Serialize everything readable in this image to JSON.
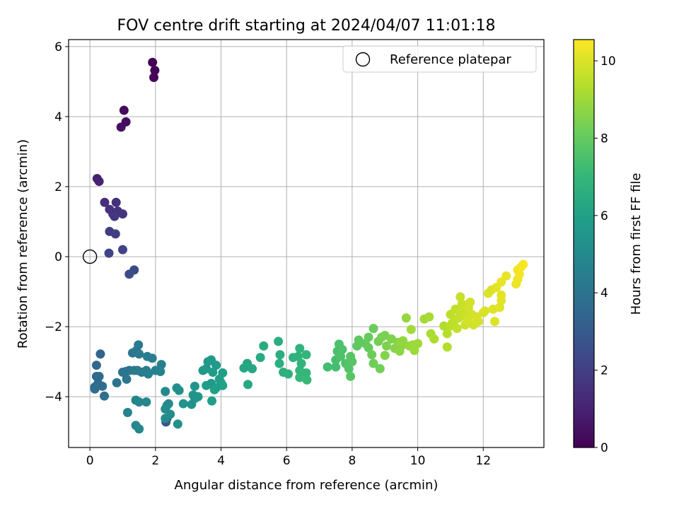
{
  "chart_data": {
    "type": "scatter",
    "title": "FOV centre drift starting at 2024/04/07 11:01:18",
    "xlabel": "Angular distance from reference (arcmin)",
    "ylabel": "Rotation from reference (arcmin)",
    "xlim": [
      -0.65,
      13.85
    ],
    "ylim": [
      -5.45,
      6.2
    ],
    "xticks": [
      "0",
      "2",
      "4",
      "6",
      "8",
      "10",
      "12"
    ],
    "xtick_values": [
      0,
      2,
      4,
      6,
      8,
      10,
      12
    ],
    "yticks": [
      "−4",
      "−2",
      "0",
      "2",
      "4",
      "6"
    ],
    "ytick_values": [
      -4,
      -2,
      0,
      2,
      4,
      6
    ],
    "grid": true,
    "colormap": "viridis",
    "colorbar": {
      "label": "Hours from first FF file",
      "range": [
        0,
        10.55
      ],
      "ticks": [
        "0",
        "2",
        "4",
        "6",
        "8",
        "10"
      ],
      "tick_values": [
        0,
        2,
        4,
        6,
        8,
        10
      ]
    },
    "legend": {
      "position": "top-right",
      "label": "Reference platepar"
    },
    "reference_point": {
      "x": 0,
      "y": 0
    },
    "points_header": [
      "x_arcmin",
      "rotation_arcmin",
      "hours"
    ],
    "points": [
      [
        1.91,
        5.55,
        0.05
      ],
      [
        1.98,
        5.32,
        0.1
      ],
      [
        1.95,
        5.12,
        0.15
      ],
      [
        1.04,
        4.18,
        0.3
      ],
      [
        1.1,
        3.85,
        0.35
      ],
      [
        0.95,
        3.7,
        0.4
      ],
      [
        0.22,
        2.23,
        0.9
      ],
      [
        0.28,
        2.15,
        1.0
      ],
      [
        0.45,
        1.55,
        1.4
      ],
      [
        0.8,
        1.55,
        1.45
      ],
      [
        0.6,
        1.35,
        1.5
      ],
      [
        0.85,
        1.3,
        1.55
      ],
      [
        0.7,
        1.22,
        1.6
      ],
      [
        1.0,
        1.22,
        1.65
      ],
      [
        0.75,
        1.15,
        1.7
      ],
      [
        0.6,
        0.72,
        1.9
      ],
      [
        0.78,
        0.65,
        2.0
      ],
      [
        1.0,
        0.2,
        2.1
      ],
      [
        0.58,
        0.1,
        2.15
      ],
      [
        1.35,
        -0.38,
        2.4
      ],
      [
        1.2,
        -0.5,
        2.5
      ],
      [
        2.32,
        -4.72,
        2.8
      ],
      [
        2.35,
        -4.62,
        3.0
      ],
      [
        0.32,
        -2.78,
        3.4
      ],
      [
        0.2,
        -3.1,
        3.5
      ],
      [
        0.2,
        -3.42,
        3.55
      ],
      [
        0.28,
        -3.42,
        3.6
      ],
      [
        0.25,
        -3.62,
        3.65
      ],
      [
        0.15,
        -3.72,
        3.7
      ],
      [
        0.38,
        -3.7,
        3.75
      ],
      [
        0.15,
        -3.78,
        3.8
      ],
      [
        0.44,
        -3.98,
        3.85
      ],
      [
        0.82,
        -3.6,
        4.0
      ],
      [
        1.0,
        -3.3,
        4.05
      ],
      [
        1.1,
        -3.28,
        4.1
      ],
      [
        1.2,
        -3.25,
        4.1
      ],
      [
        1.12,
        -3.5,
        4.15
      ],
      [
        1.3,
        -2.75,
        4.2
      ],
      [
        1.42,
        -2.68,
        4.25
      ],
      [
        1.48,
        -2.52,
        4.3
      ],
      [
        1.5,
        -2.78,
        4.3
      ],
      [
        1.35,
        -3.25,
        4.35
      ],
      [
        1.45,
        -3.25,
        4.4
      ],
      [
        1.58,
        -3.3,
        4.45
      ],
      [
        1.75,
        -2.85,
        4.5
      ],
      [
        1.9,
        -2.9,
        4.5
      ],
      [
        1.72,
        -3.25,
        4.55
      ],
      [
        1.78,
        -3.35,
        4.6
      ],
      [
        2.0,
        -3.25,
        4.6
      ],
      [
        2.18,
        -3.08,
        4.65
      ],
      [
        2.15,
        -3.28,
        4.7
      ],
      [
        1.15,
        -4.45,
        4.75
      ],
      [
        1.4,
        -4.1,
        4.8
      ],
      [
        1.5,
        -4.15,
        4.85
      ],
      [
        1.72,
        -4.15,
        4.9
      ],
      [
        1.4,
        -4.82,
        4.9
      ],
      [
        1.5,
        -4.92,
        4.95
      ],
      [
        2.3,
        -3.85,
        5.0
      ],
      [
        2.35,
        -4.25,
        5.05
      ],
      [
        2.4,
        -4.2,
        5.05
      ],
      [
        2.3,
        -4.35,
        5.1
      ],
      [
        2.45,
        -4.5,
        5.15
      ],
      [
        2.3,
        -4.62,
        5.15
      ],
      [
        2.65,
        -3.75,
        5.2
      ],
      [
        2.72,
        -3.82,
        5.25
      ],
      [
        2.68,
        -4.78,
        5.3
      ],
      [
        2.85,
        -4.2,
        5.35
      ],
      [
        3.1,
        -4.22,
        5.4
      ],
      [
        3.15,
        -3.95,
        5.45
      ],
      [
        3.2,
        -4.05,
        5.5
      ],
      [
        3.2,
        -3.7,
        5.5
      ],
      [
        3.3,
        -4.0,
        5.55
      ],
      [
        3.45,
        -3.25,
        5.6
      ],
      [
        3.6,
        -3.0,
        5.65
      ],
      [
        3.55,
        -3.2,
        5.65
      ],
      [
        3.7,
        -2.95,
        5.7
      ],
      [
        3.85,
        -3.1,
        5.7
      ],
      [
        3.75,
        -3.3,
        5.75
      ],
      [
        3.7,
        -3.62,
        5.75
      ],
      [
        3.55,
        -3.68,
        5.8
      ],
      [
        3.95,
        -3.5,
        5.8
      ],
      [
        3.85,
        -3.75,
        5.85
      ],
      [
        4.0,
        -3.6,
        5.85
      ],
      [
        4.05,
        -3.32,
        5.9
      ],
      [
        3.72,
        -4.12,
        5.9
      ],
      [
        3.8,
        -3.8,
        5.95
      ],
      [
        4.05,
        -3.68,
        6.0
      ],
      [
        4.8,
        -3.05,
        6.2
      ],
      [
        4.7,
        -3.18,
        6.25
      ],
      [
        4.95,
        -3.2,
        6.3
      ],
      [
        4.82,
        -3.65,
        6.35
      ],
      [
        5.2,
        -2.88,
        6.4
      ],
      [
        5.3,
        -2.55,
        6.45
      ],
      [
        5.75,
        -2.42,
        6.5
      ],
      [
        5.8,
        -2.8,
        6.55
      ],
      [
        5.78,
        -3.05,
        6.6
      ],
      [
        5.9,
        -3.3,
        6.65
      ],
      [
        6.05,
        -3.35,
        6.7
      ],
      [
        6.2,
        -2.88,
        6.75
      ],
      [
        6.35,
        -2.85,
        6.8
      ],
      [
        6.4,
        -2.62,
        6.85
      ],
      [
        6.45,
        -3.05,
        6.9
      ],
      [
        6.4,
        -3.25,
        6.95
      ],
      [
        6.6,
        -2.8,
        7.0
      ],
      [
        6.6,
        -3.32,
        7.0
      ],
      [
        6.4,
        -3.45,
        7.05
      ],
      [
        6.62,
        -3.52,
        7.1
      ],
      [
        7.25,
        -3.15,
        7.3
      ],
      [
        7.5,
        -3.15,
        7.35
      ],
      [
        7.5,
        -2.95,
        7.4
      ],
      [
        7.55,
        -2.7,
        7.45
      ],
      [
        7.6,
        -2.5,
        7.5
      ],
      [
        7.7,
        -2.65,
        7.55
      ],
      [
        7.65,
        -2.85,
        7.55
      ],
      [
        7.8,
        -3.05,
        7.6
      ],
      [
        7.9,
        -3.2,
        7.65
      ],
      [
        7.95,
        -2.85,
        7.7
      ],
      [
        8.0,
        -3.0,
        7.75
      ],
      [
        7.95,
        -3.42,
        7.8
      ],
      [
        8.15,
        -2.55,
        7.85
      ],
      [
        8.2,
        -2.38,
        7.9
      ],
      [
        8.4,
        -2.48,
        7.95
      ],
      [
        8.5,
        -2.6,
        8.0
      ],
      [
        8.5,
        -2.3,
        8.05
      ],
      [
        8.65,
        -2.05,
        8.1
      ],
      [
        8.6,
        -2.8,
        8.15
      ],
      [
        8.65,
        -3.05,
        8.2
      ],
      [
        8.85,
        -3.2,
        8.25
      ],
      [
        8.8,
        -2.42,
        8.3
      ],
      [
        8.9,
        -2.3,
        8.35
      ],
      [
        9.0,
        -2.25,
        8.4
      ],
      [
        9.05,
        -2.55,
        8.45
      ],
      [
        9.2,
        -2.35,
        8.5
      ],
      [
        9.0,
        -2.82,
        8.55
      ],
      [
        9.3,
        -2.62,
        8.6
      ],
      [
        9.4,
        -2.45,
        8.65
      ],
      [
        9.45,
        -2.7,
        8.7
      ],
      [
        9.5,
        -2.55,
        8.75
      ],
      [
        9.55,
        -2.4,
        8.8
      ],
      [
        9.65,
        -1.75,
        8.85
      ],
      [
        9.75,
        -2.55,
        8.9
      ],
      [
        9.85,
        -2.52,
        8.95
      ],
      [
        9.9,
        -2.68,
        9.0
      ],
      [
        10.0,
        -2.48,
        9.0
      ],
      [
        9.8,
        -2.08,
        9.05
      ],
      [
        10.2,
        -1.78,
        9.1
      ],
      [
        10.35,
        -1.72,
        9.15
      ],
      [
        10.4,
        -2.2,
        9.2
      ],
      [
        10.5,
        -2.35,
        9.25
      ],
      [
        10.8,
        -1.98,
        9.3
      ],
      [
        10.9,
        -2.58,
        9.35
      ],
      [
        10.9,
        -2.2,
        9.4
      ],
      [
        11.0,
        -1.98,
        9.45
      ],
      [
        11.0,
        -1.65,
        9.5
      ],
      [
        11.05,
        -1.9,
        9.5
      ],
      [
        11.15,
        -1.5,
        9.55
      ],
      [
        11.15,
        -1.8,
        9.55
      ],
      [
        11.2,
        -2.05,
        9.6
      ],
      [
        11.25,
        -1.75,
        9.6
      ],
      [
        11.3,
        -1.6,
        9.65
      ],
      [
        11.3,
        -1.15,
        9.65
      ],
      [
        11.35,
        -1.35,
        9.7
      ],
      [
        11.4,
        -1.55,
        9.7
      ],
      [
        11.45,
        -1.95,
        9.75
      ],
      [
        11.5,
        -1.75,
        9.75
      ],
      [
        11.55,
        -1.45,
        9.8
      ],
      [
        11.6,
        -1.3,
        9.8
      ],
      [
        11.65,
        -1.65,
        9.85
      ],
      [
        11.55,
        -1.85,
        9.85
      ],
      [
        11.7,
        -1.95,
        9.85
      ],
      [
        11.8,
        -1.72,
        9.9
      ],
      [
        11.85,
        -1.85,
        9.9
      ],
      [
        12.0,
        -1.6,
        9.95
      ],
      [
        12.05,
        -1.55,
        9.95
      ],
      [
        12.15,
        -1.05,
        10.0
      ],
      [
        12.25,
        -0.95,
        10.0
      ],
      [
        12.3,
        -1.5,
        10.05
      ],
      [
        12.35,
        -1.85,
        10.05
      ],
      [
        12.4,
        -0.88,
        10.1
      ],
      [
        12.5,
        -1.45,
        10.1
      ],
      [
        12.55,
        -1.25,
        10.15
      ],
      [
        12.55,
        -1.1,
        10.15
      ],
      [
        12.55,
        -0.72,
        10.2
      ],
      [
        12.7,
        -0.55,
        10.2
      ],
      [
        13.0,
        -0.78,
        10.25
      ],
      [
        13.05,
        -0.65,
        10.3
      ],
      [
        13.1,
        -0.5,
        10.35
      ],
      [
        13.05,
        -0.38,
        10.35
      ],
      [
        13.15,
        -0.3,
        10.4
      ],
      [
        13.22,
        -0.22,
        10.45
      ]
    ]
  }
}
